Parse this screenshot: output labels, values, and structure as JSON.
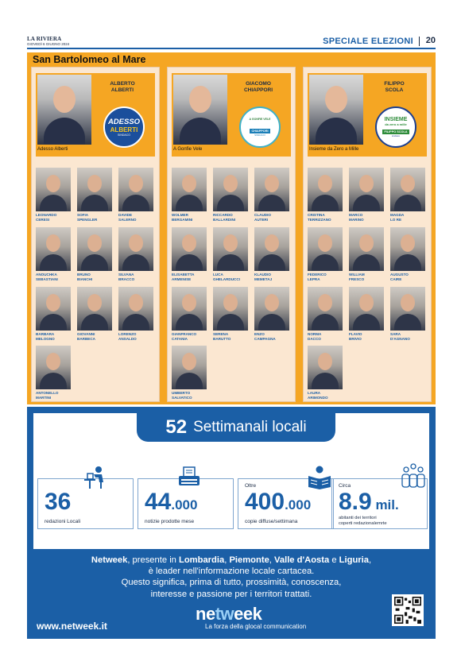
{
  "header": {
    "publication": "LA RIVIERA",
    "date": "GIOVEDÌ 6 GIUGNO 2024",
    "section": "SPECIALE ELEZIONI",
    "page": "20"
  },
  "municipality": "San Bartolomeo al Mare",
  "lists": [
    {
      "candidate_name": "ALBERTO\nALBERTI",
      "list_name": "Adesso Alberti",
      "logo": {
        "line1": "ADESSO",
        "line2": "ALBERTI",
        "line3": "SINDACO"
      },
      "members": [
        "LEONARDO\nCERESI",
        "SOFIA\nSPENGLER",
        "DAVIDE\nSALERNO",
        "ANOUCHKA\nSEBASTIANI",
        "BRUNO\nBIANCHI",
        "SILVANA\nBRACCO",
        "BARBARA\nMELOGNO",
        "GIOVANNI\nBARBECA",
        "LORENZO\nANSALDO",
        "ANTONELLO\nMARTINI"
      ]
    },
    {
      "candidate_name": "GIACOMO\nCHIAPPORI",
      "list_name": "A Gonfie Vele",
      "logo": {
        "line1": "A GONFIE VELE",
        "line2": "CHIAPPORI",
        "line3": "SINDACO"
      },
      "members": [
        "WOLMER\nBERGAMINI",
        "RICCARDO\nBALLARDINI",
        "CLAUDIO\nAUTERI",
        "ELISABETTA\nARMENISE",
        "LUCA\nGHELARDUCCI",
        "KLAUDIO\nMEMETAJ",
        "GIANFRANCO\nCATANIA",
        "SERENA\nBARUTTO",
        "ENZO\nCAMPAGNA",
        "UMBERTO\nSALVATICO"
      ]
    },
    {
      "candidate_name": "FILIPPO\nSCOLA",
      "list_name": "Insieme da Zero a Mille",
      "logo": {
        "line1": "INSIEME",
        "line2": "da zero a mille",
        "line3": "FILIPPO SCOLA",
        "line4": "sindaco"
      },
      "members": [
        "CRISTINA\nTERRIZZANO",
        "MARCO\nMARINO",
        "MAGDA\nLO RE",
        "FEDERICO\nLEPRA",
        "WILLIAM\nFRESCO",
        "AUGUSTO\nCAIRE",
        "NORMA\nDACCO",
        "FLAVIO\nBRIVIO",
        "SARA\nD'AGNANO",
        "LAURA\nARIMONDO"
      ]
    }
  ],
  "promo": {
    "banner_number": "52",
    "banner_text": "Settimanali locali",
    "stats": [
      {
        "prefix": "",
        "value": "36",
        "suffix": "",
        "caption": "redazioni Locali",
        "icon": "person-at-desk-icon"
      },
      {
        "prefix": "",
        "value": "44",
        "suffix": ".000",
        "caption": "notizie prodotte mese",
        "icon": "typewriter-icon"
      },
      {
        "prefix": "Oltre",
        "value": "400",
        "suffix": ".000",
        "caption": "copie diffuse/settimana",
        "icon": "newspaper-reader-icon"
      },
      {
        "prefix": "Circa",
        "value": "8.9",
        "suffix": " mil.",
        "caption": "abitanti dei territori\ncoperti redazionalemrte",
        "icon": "people-group-icon"
      }
    ],
    "text": {
      "brand": "Netweek",
      "t1": ", presente in ",
      "r1": "Lombardia",
      "t2": ", ",
      "r2": "Piemonte",
      "t3": ", ",
      "r3": "Valle d'Aosta",
      "t4": " e ",
      "r4": "Liguria",
      "t5": ",",
      "line2": "è leader nell'informazione locale cartacea.",
      "line3": "Questo significa, prima di tutto, prossimità, conoscenza,",
      "line4": "interesse e passione per i territori trattati."
    },
    "url": "www.netweek.it",
    "logo_a": "ne",
    "logo_b": "tw",
    "logo_c": "eek",
    "tagline": "La forza della glocal communication"
  },
  "colors": {
    "accent": "#1b5fa6",
    "election_orange": "#f5a623",
    "panel": "#fbe7d1"
  }
}
